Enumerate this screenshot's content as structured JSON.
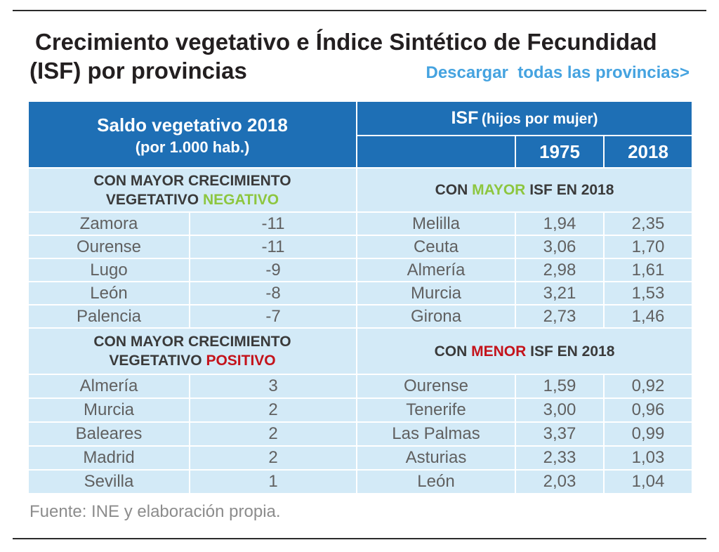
{
  "title_lines": [
    "Crecimiento vegetativo e Índice Sintético de Fecundidad",
    "(ISF) por provincias"
  ],
  "download_link": "Descargar  todas las provincias>",
  "source": "Fuente: INE y elaboración propia.",
  "colors": {
    "header_bg": "#1e6fb5",
    "row_bg": "#d3eaf7",
    "link": "#45a3e0",
    "rule": "#2b2b2b"
  },
  "chart_data": {
    "type": "table",
    "tables": [
      {
        "header": "Saldo vegetativo 2018",
        "header_note": "(por 1.000 hab.)",
        "columns": [],
        "groups": [
          {
            "label": [
              {
                "text": "CON MAYOR CRECIMIENTO VEGETATIVO"
              },
              {
                "text": "NEGATIVO",
                "color": "#8dc63f"
              }
            ],
            "rows": [
              [
                "Zamora",
                "-11"
              ],
              [
                "Ourense",
                "-11"
              ],
              [
                "Lugo",
                "-9"
              ],
              [
                "León",
                "-8"
              ],
              [
                "Palencia",
                "-7"
              ]
            ]
          },
          {
            "label": [
              {
                "text": "CON MAYOR CRECIMIENTO VEGETATIVO"
              },
              {
                "text": "POSITIVO",
                "color": "#c4131b"
              }
            ],
            "rows": [
              [
                "Almería",
                "3"
              ],
              [
                "Murcia",
                "2"
              ],
              [
                "Baleares",
                "2"
              ],
              [
                "Madrid",
                "2"
              ],
              [
                "Sevilla",
                "1"
              ]
            ]
          }
        ]
      },
      {
        "header": "ISF",
        "header_note": "(hijos por mujer)",
        "columns": [
          "1975",
          "2018"
        ],
        "groups": [
          {
            "label": [
              {
                "text": "CON"
              },
              {
                "text": "MAYOR",
                "color": "#8dc63f"
              },
              {
                "text": "ISF EN 2018"
              }
            ],
            "rows": [
              [
                "Melilla",
                "1,94",
                "2,35"
              ],
              [
                "Ceuta",
                "3,06",
                "1,70"
              ],
              [
                "Almería",
                "2,98",
                "1,61"
              ],
              [
                "Murcia",
                "3,21",
                "1,53"
              ],
              [
                "Girona",
                "2,73",
                "1,46"
              ]
            ]
          },
          {
            "label": [
              {
                "text": "CON"
              },
              {
                "text": "MENOR",
                "color": "#c4131b"
              },
              {
                "text": "ISF EN 2018"
              }
            ],
            "rows": [
              [
                "Ourense",
                "1,59",
                "0,92"
              ],
              [
                "Tenerife",
                "3,00",
                "0,96"
              ],
              [
                "Las Palmas",
                "3,37",
                "0,99"
              ],
              [
                "Asturias",
                "2,33",
                "1,03"
              ],
              [
                "León",
                "2,03",
                "1,04"
              ]
            ]
          }
        ]
      }
    ]
  }
}
